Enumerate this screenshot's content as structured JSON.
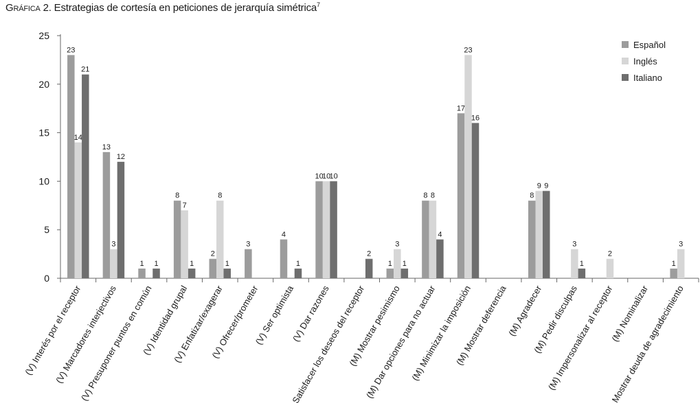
{
  "title": {
    "lead": "Gráfica",
    "text": "2. Estrategias de cortesía en peticiones de jerarquía simétrica",
    "note": "7"
  },
  "colors": {
    "Español": "#9c9c9c",
    "Inglés": "#d6d6d6",
    "Italiano": "#6e6e6e"
  },
  "chart_data": {
    "type": "bar",
    "title": "Gráfica 2. Estrategias de cortesía en peticiones de jerarquía simétrica",
    "xlabel": "",
    "ylabel": "",
    "ylim": [
      0,
      25
    ],
    "yticks": [
      0,
      5,
      10,
      15,
      20,
      25
    ],
    "grid": false,
    "legend_position": "top-right",
    "categories": [
      "(V) Interés por el receptor",
      "(V) Marcadores interjectivos",
      "(V) Presuponer puntos en común",
      "(V) Identidad grupal",
      "(V) Enfatizar/exagerar",
      "(V) Ofrecer/prometer",
      "(V) Ser optimista",
      "(V) Dar razones",
      "(V) Satisfacer los deseos del receptor",
      "(M) Mostrar pesimismo",
      "(M) Dar opciones para no actuar",
      "(M) Minimizar la imposición",
      "(M) Mostrar deferencia",
      "(M) Agradecer",
      "(M) Pedir disculpas",
      "(M) Impersonalizar al receptor",
      "(M) Nominalizar",
      "(M) Mostrar deuda de agradecimiento"
    ],
    "series": [
      {
        "name": "Español",
        "values": [
          23,
          13,
          1,
          8,
          2,
          3,
          4,
          10,
          0,
          1,
          8,
          17,
          0,
          8,
          0,
          0,
          0,
          1
        ]
      },
      {
        "name": "Inglés",
        "values": [
          14,
          3,
          0,
          7,
          8,
          0,
          0,
          10,
          0,
          3,
          8,
          23,
          0,
          9,
          3,
          2,
          0,
          3
        ]
      },
      {
        "name": "Italiano",
        "values": [
          21,
          12,
          1,
          1,
          1,
          0,
          1,
          10,
          2,
          1,
          4,
          16,
          0,
          9,
          1,
          0,
          0,
          0
        ]
      }
    ]
  }
}
